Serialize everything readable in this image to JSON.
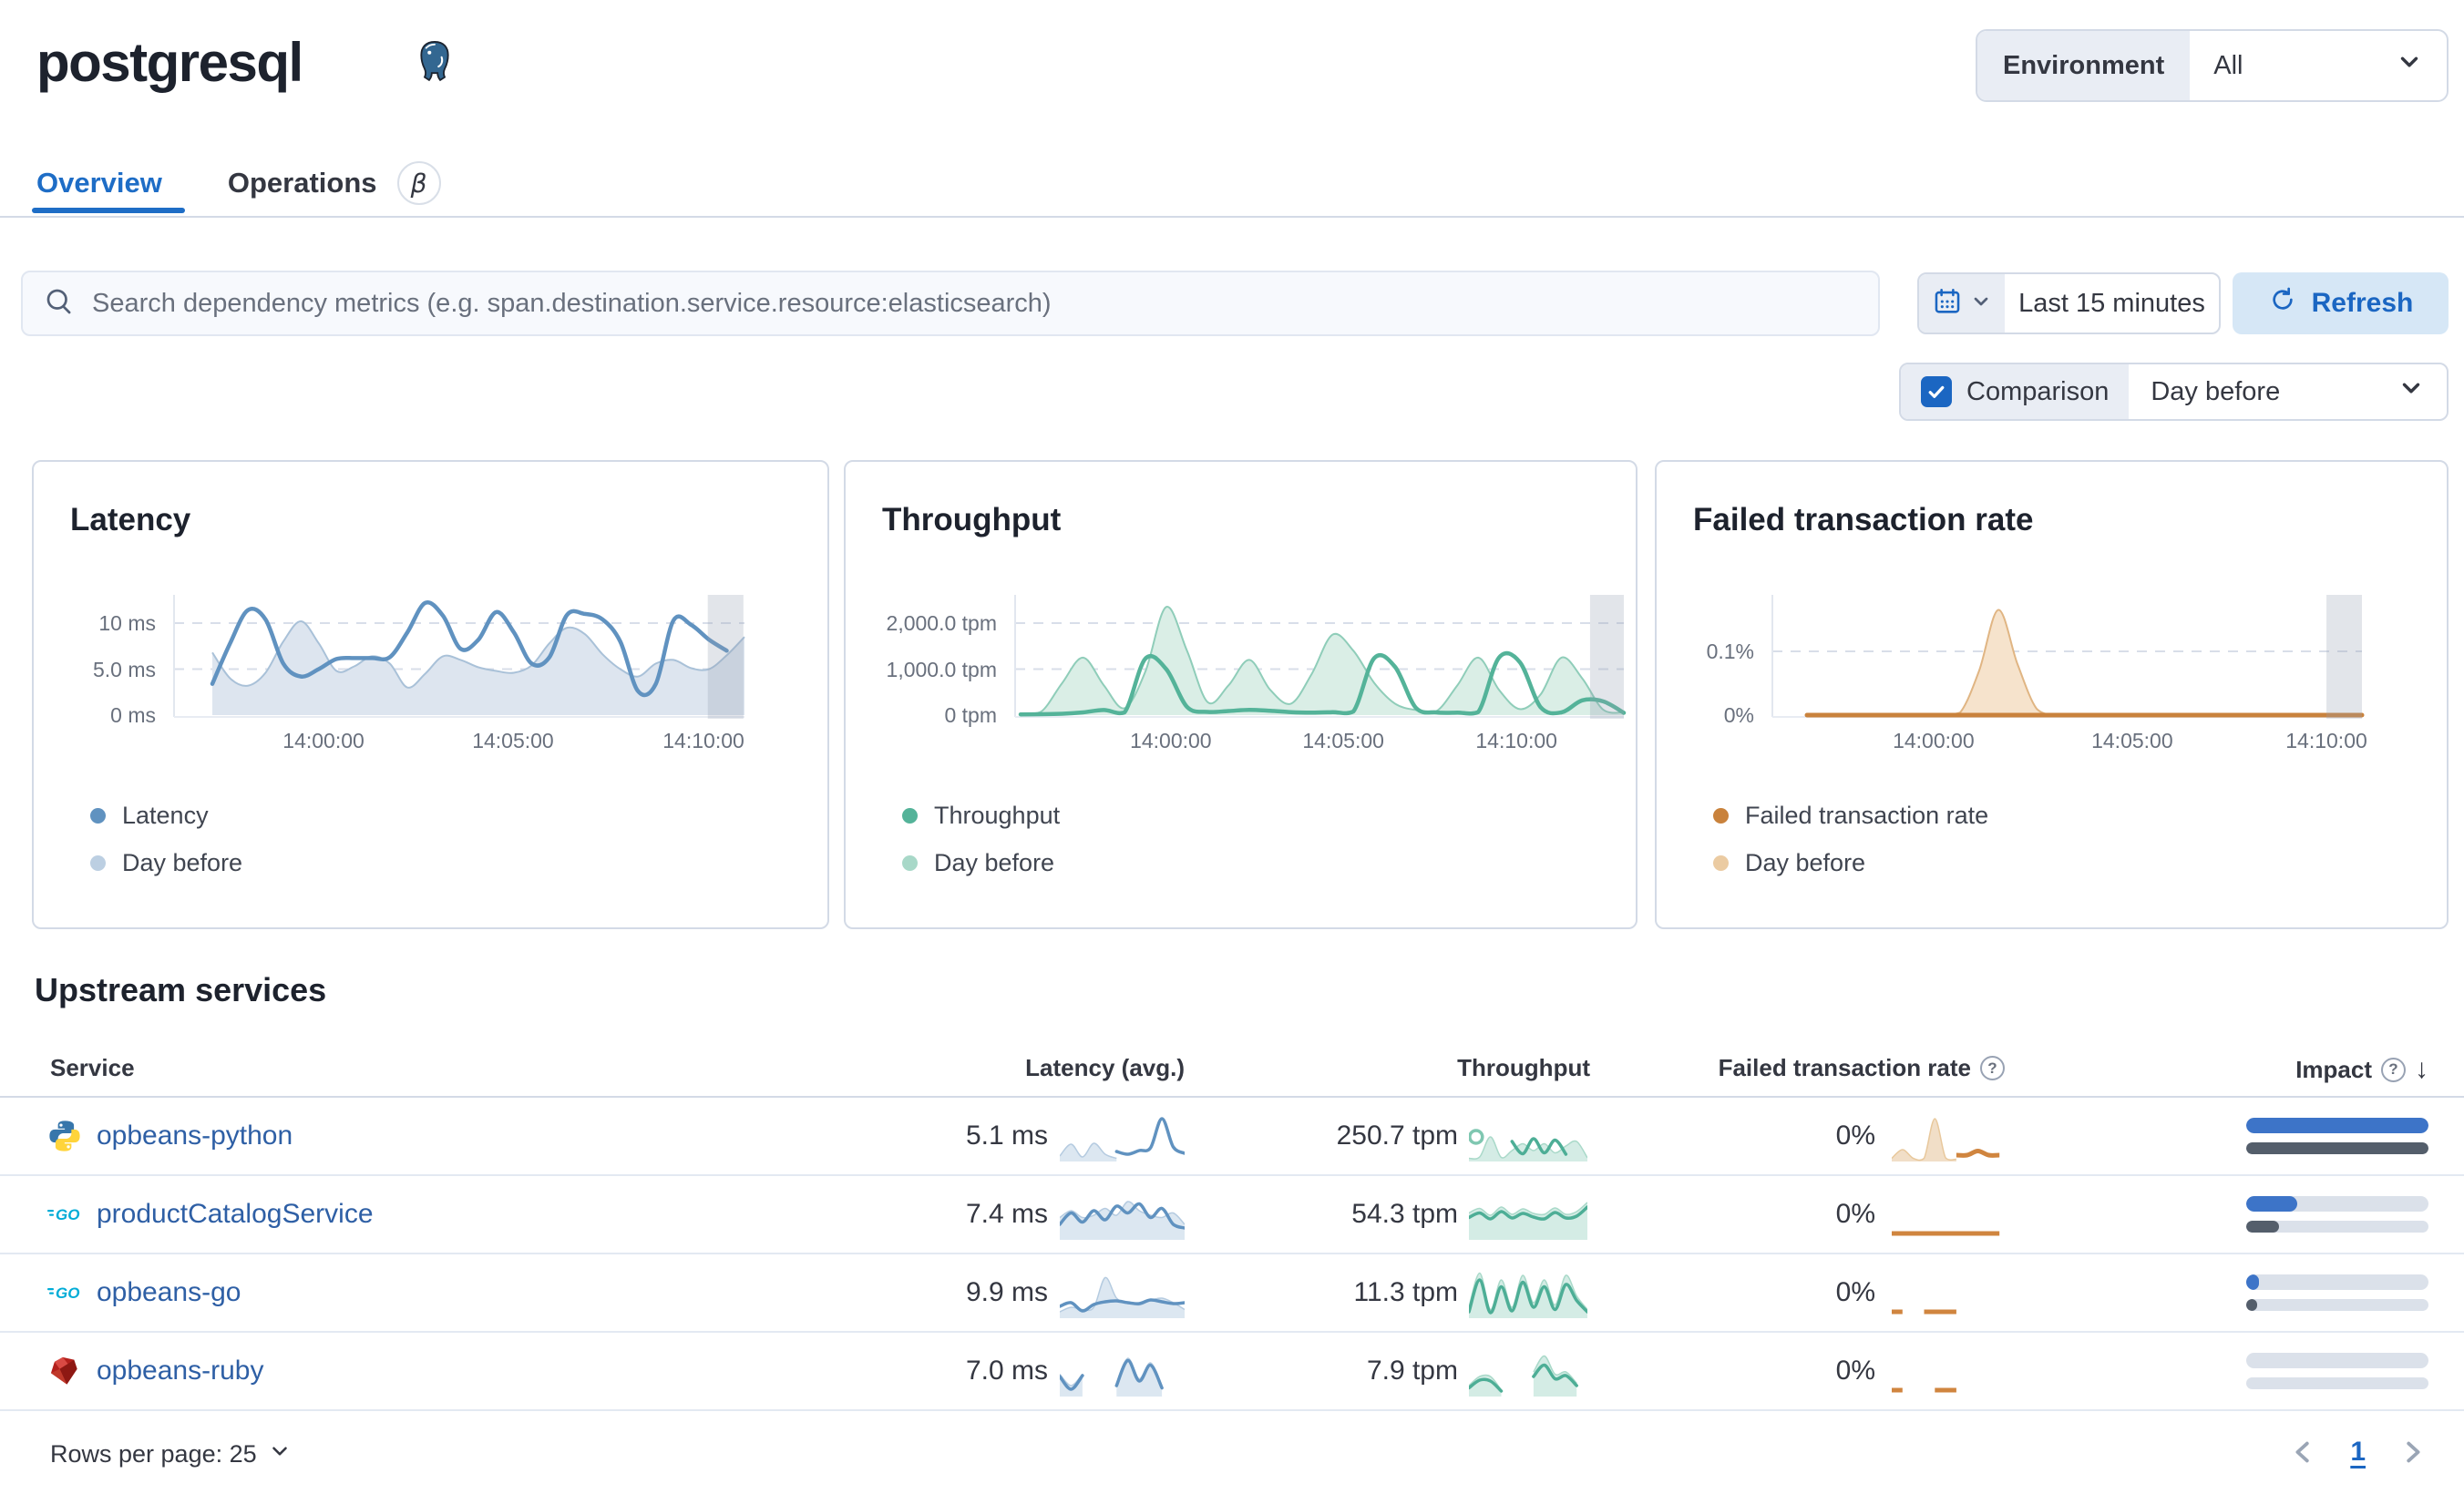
{
  "header": {
    "title": "postgresql",
    "environment_label": "Environment",
    "environment_value": "All"
  },
  "tabs": [
    {
      "label": "Overview",
      "active": true
    },
    {
      "label": "Operations",
      "beta": "β"
    }
  ],
  "toolbar": {
    "search_placeholder": "Search dependency metrics (e.g. span.destination.service.resource:elasticsearch)",
    "time_range": "Last 15 minutes",
    "refresh_label": "Refresh",
    "comparison_label": "Comparison",
    "comparison_value": "Day before"
  },
  "colors": {
    "accent": "#1b66c2",
    "link": "#2e5fa5",
    "latency": "#6092C0",
    "throughput": "#54B399",
    "failed": "#C9823C",
    "impact_bar": "#3d74c8",
    "impact_prev_bar": "#545e6b"
  },
  "chart_data": [
    {
      "type": "line",
      "title": "Latency",
      "ylabel": "ms",
      "ylim": [
        0,
        13
      ],
      "grid": true,
      "legend_position": "bottom-left",
      "y_ticks": [
        {
          "label": "10 ms",
          "v": 10
        },
        {
          "label": "5.0 ms",
          "v": 5
        },
        {
          "label": "0 ms",
          "v": 0
        }
      ],
      "x_ticks": [
        {
          "label": "14:00:00",
          "f": 0.209
        },
        {
          "label": "14:05:00",
          "f": 0.565
        },
        {
          "label": "14:10:00",
          "f": 0.923
        }
      ],
      "partial_band": [
        0.931,
        0.998
      ],
      "series": [
        {
          "name": "Latency",
          "kind": "line",
          "color": "#6092C0",
          "values": [
            3.4,
            7.8,
            11.4,
            10.4,
            5.6,
            4.2,
            5.0,
            6.1,
            6.2,
            6.2,
            6.3,
            9.0,
            12.2,
            10.8,
            7.2,
            8.2,
            11.2,
            9.0,
            5.6,
            6.3,
            10.9,
            11.0,
            10.4,
            8.0,
            2.6,
            3.4,
            10.3,
            9.8,
            8.2,
            7.0,
            null
          ]
        },
        {
          "name": "Day before",
          "kind": "area",
          "color": "#BCCFE2",
          "fill": "#DDE5EF",
          "stroke": "#A9C1D8",
          "values": [
            6.8,
            4.0,
            3.2,
            4.6,
            8.0,
            10.2,
            7.8,
            4.8,
            5.3,
            6.4,
            5.6,
            3.0,
            4.5,
            6.4,
            6.0,
            5.2,
            4.8,
            4.6,
            5.4,
            7.8,
            9.5,
            8.8,
            6.6,
            5.0,
            4.2,
            5.6,
            6.0,
            5.1,
            5.0,
            6.5,
            8.5
          ]
        }
      ]
    },
    {
      "type": "line",
      "title": "Throughput",
      "ylabel": "tpm",
      "ylim": [
        0,
        2500
      ],
      "grid": true,
      "legend_position": "bottom-left",
      "y_ticks": [
        {
          "label": "2,000.0 tpm",
          "v": 2000
        },
        {
          "label": "1,000.0 tpm",
          "v": 1000
        },
        {
          "label": "0 tpm",
          "v": 0
        }
      ],
      "x_ticks": [
        {
          "label": "14:00:00",
          "f": 0.249
        },
        {
          "label": "14:05:00",
          "f": 0.535
        },
        {
          "label": "14:10:00",
          "f": 0.822
        }
      ],
      "partial_band": [
        0.944,
        1.0
      ],
      "series": [
        {
          "name": "Throughput",
          "kind": "line",
          "color": "#54B399",
          "values": [
            15,
            20,
            30,
            60,
            110,
            60,
            1230,
            1000,
            180,
            70,
            90,
            115,
            95,
            65,
            55,
            65,
            80,
            1240,
            1050,
            160,
            60,
            55,
            65,
            1250,
            1150,
            170,
            60,
            320,
            300,
            50
          ]
        },
        {
          "name": "Day before",
          "kind": "area",
          "color": "#A8D8C8",
          "fill": "#DAEEE6",
          "stroke": "#8FCDB9",
          "values": [
            40,
            80,
            700,
            1250,
            650,
            150,
            950,
            2350,
            1400,
            280,
            650,
            1200,
            550,
            250,
            900,
            1750,
            1400,
            700,
            250,
            110,
            90,
            650,
            1250,
            550,
            130,
            450,
            1250,
            800,
            120,
            60
          ]
        }
      ]
    },
    {
      "type": "line",
      "title": "Failed transaction rate",
      "ylabel": "%",
      "ylim": [
        0,
        0.18
      ],
      "grid": true,
      "legend_position": "bottom-left",
      "y_ticks": [
        {
          "label": "0.1%",
          "v": 0.1
        },
        {
          "label": "0%",
          "v": 0
        }
      ],
      "x_ticks": [
        {
          "label": "14:00:00",
          "f": 0.228
        },
        {
          "label": "14:05:00",
          "f": 0.586
        },
        {
          "label": "14:10:00",
          "f": 0.936
        }
      ],
      "partial_band": [
        0.936,
        1.0
      ],
      "series": [
        {
          "name": "Failed transaction rate",
          "kind": "line",
          "color": "#C9823C",
          "values": [
            0,
            0,
            0,
            0,
            0,
            0,
            0,
            0,
            0,
            0,
            0,
            0,
            0,
            0,
            0,
            0,
            0,
            0,
            0,
            0,
            0,
            0,
            0,
            0,
            0,
            0,
            0,
            0,
            0,
            0
          ]
        },
        {
          "name": "Day before",
          "kind": "area",
          "color": "#EBCBA2",
          "fill": "#F6E3CC",
          "stroke": "#E0B583",
          "values": [
            0,
            0,
            0,
            0,
            0,
            0,
            0,
            0,
            0.004,
            0.07,
            0.165,
            0.08,
            0.01,
            0,
            0,
            0,
            0,
            0,
            0,
            0,
            0,
            0,
            0,
            0,
            0,
            0,
            0,
            0,
            0,
            0
          ]
        }
      ]
    }
  ],
  "table": {
    "heading": "Upstream services",
    "columns": [
      "Service",
      "Latency (avg.)",
      "Throughput",
      "Failed transaction rate",
      "Impact"
    ],
    "rows": [
      {
        "icon": "python",
        "service": "opbeans-python",
        "latency": "5.1 ms",
        "throughput": "250.7 tpm",
        "failed_rate": "0%",
        "impact": {
          "current": 1.0,
          "previous": 1.0
        },
        "latency_spark": {
          "line": [
            null,
            null,
            null,
            null,
            null,
            1.8,
            1.2,
            2.0,
            2.6,
            9.0,
            2.8,
            1.4
          ],
          "area": [
            0.8,
            3.4,
            0.6,
            3.6,
            1.2,
            0.3,
            null,
            null,
            null,
            null,
            null,
            null
          ]
        },
        "throughput_spark": {
          "line": [
            null,
            null,
            null,
            null,
            4.0,
            1.3,
            4.6,
            1.5,
            4.3,
            1.2,
            null,
            null
          ],
          "area": [
            0.3,
            0.6,
            5.0,
            0.5,
            2.0,
            3.5,
            2.0,
            3.5,
            1.5,
            3.0,
            4.0,
            0.4
          ],
          "dot": [
            0.06,
            0.5
          ]
        },
        "failed_spark": {
          "line": [
            null,
            null,
            null,
            null,
            null,
            null,
            1,
            1,
            1.9,
            1,
            1,
            null
          ],
          "area": [
            0.3,
            2.2,
            0.3,
            0.3,
            9.0,
            0.4,
            0.1,
            null,
            null,
            null,
            null,
            null
          ]
        }
      },
      {
        "icon": "go",
        "service": "productCatalogService",
        "latency": "7.4 ms",
        "throughput": "54.3 tpm",
        "failed_rate": "0%",
        "impact": {
          "current": 0.28,
          "previous": 0.18
        },
        "latency_spark": {
          "line": [
            3,
            5.5,
            3.5,
            6,
            4,
            7,
            5.5,
            7.5,
            4.5,
            6.5,
            3,
            2.2
          ],
          "area": [
            4.5,
            6,
            4.5,
            5,
            6.5,
            5,
            8,
            6,
            5,
            4.5,
            5.5,
            3
          ]
        },
        "throughput_spark": {
          "line": [
            4.5,
            5.5,
            4.2,
            5.8,
            4.4,
            5.4,
            4.6,
            4.2,
            5.6,
            4.4,
            4.8,
            6.8
          ],
          "area": [
            5.5,
            6.5,
            5,
            6.8,
            5.2,
            6.4,
            5.4,
            5.2,
            6.6,
            5.2,
            5.8,
            7.8
          ]
        },
        "failed_spark": {
          "line": [
            1,
            1,
            1,
            1,
            1,
            1,
            1,
            1,
            1,
            1,
            1,
            null
          ],
          "area": null
        }
      },
      {
        "icon": "go",
        "service": "opbeans-go",
        "latency": "9.9 ms",
        "throughput": "11.3 tpm",
        "failed_rate": "0%",
        "impact": {
          "current": 0.05,
          "previous": 0.05
        },
        "latency_spark": {
          "line": [
            2.2,
            3,
            1.2,
            2.6,
            3.2,
            3.4,
            3,
            2.8,
            3.6,
            3.2,
            2.8,
            3
          ],
          "area": [
            1,
            2,
            1.5,
            2,
            8.5,
            4,
            3,
            2.5,
            3.5,
            4,
            3,
            1.5
          ]
        },
        "throughput_spark": {
          "line": [
            1,
            8,
            0.8,
            6.5,
            1.2,
            7.5,
            2,
            6.5,
            1.5,
            7,
            3.5,
            1
          ],
          "area": [
            2,
            9.5,
            1.5,
            8,
            2,
            9,
            3,
            8,
            2.5,
            9,
            4.5,
            1.5
          ]
        },
        "failed_spark": {
          "line": [
            1,
            1,
            null,
            1,
            1,
            1,
            1,
            null,
            null,
            null,
            null,
            null
          ],
          "area": null
        }
      },
      {
        "icon": "ruby",
        "service": "opbeans-ruby",
        "latency": "7.0 ms",
        "throughput": "7.9 tpm",
        "failed_rate": "0%",
        "impact": {
          "current": 0.0,
          "previous": 0.0
        },
        "latency_spark": {
          "line": [
            4,
            1.2,
            4.2,
            null,
            null,
            2,
            7.5,
            3,
            6.5,
            1.5,
            null,
            null
          ],
          "area": [
            4.5,
            2,
            4.5,
            null,
            null,
            2.5,
            8,
            3.5,
            7,
            2,
            null,
            null
          ]
        },
        "throughput_spark": {
          "line": [
            1.5,
            3.2,
            3.0,
            0.8,
            null,
            null,
            4,
            6.5,
            3.5,
            4.2,
            2,
            null
          ],
          "area": [
            2,
            4,
            4,
            1,
            null,
            null,
            5,
            8.5,
            4.5,
            5,
            2.5,
            null
          ]
        },
        "failed_spark": {
          "line": [
            1,
            1,
            null,
            null,
            1,
            1,
            1,
            null,
            null,
            null,
            null,
            null
          ],
          "area": null
        }
      }
    ]
  },
  "footer": {
    "rows_per_page": "Rows per page: 25",
    "page": "1"
  }
}
